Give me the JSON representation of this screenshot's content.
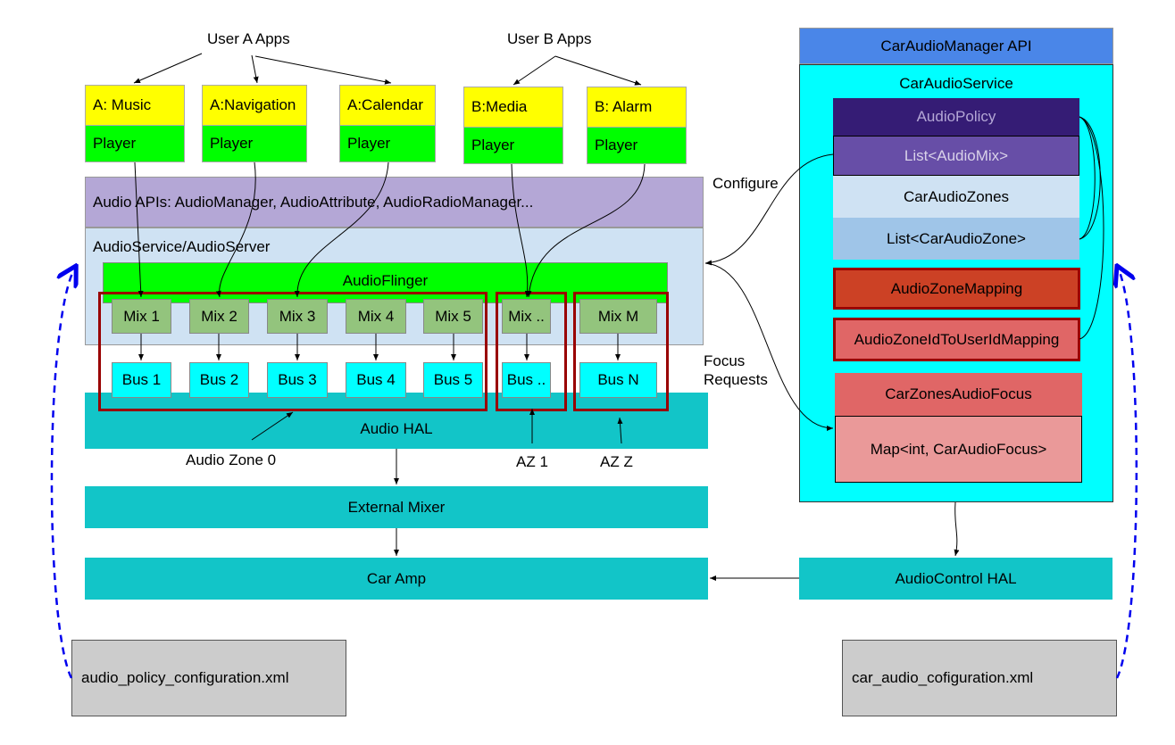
{
  "groups": {
    "user_a": "User A Apps",
    "user_b": "User B Apps"
  },
  "apps": [
    {
      "name": "A: Music",
      "player": "Player"
    },
    {
      "name": "A:Navigation",
      "player": "Player"
    },
    {
      "name": "A:Calendar",
      "player": "Player"
    },
    {
      "name": "B:Media",
      "player": "Player"
    },
    {
      "name": "B: Alarm",
      "player": "Player"
    }
  ],
  "audio_apis": "Audio APIs: AudioManager, AudioAttribute, AudioRadioManager...",
  "audio_service": "AudioService/AudioServer",
  "audio_flinger": "AudioFlinger",
  "mixes": [
    "Mix 1",
    "Mix 2",
    "Mix 3",
    "Mix 4",
    "Mix 5",
    "Mix ..",
    "Mix M"
  ],
  "buses": [
    "Bus 1",
    "Bus 2",
    "Bus 3",
    "Bus 4",
    "Bus 5",
    "Bus ..",
    "Bus N"
  ],
  "audio_hal": "Audio HAL",
  "zones": {
    "zone0": "Audio Zone 0",
    "az1": "AZ 1",
    "azz": "AZ Z"
  },
  "external_mixer": "External Mixer",
  "car_amp": "Car Amp",
  "audio_policy_xml": "audio_policy_configuration.xml",
  "car_audio_xml": "car_audio_cofiguration.xml",
  "labels": {
    "configure": "Configure",
    "focus_1": "Focus",
    "focus_2": "Requests"
  },
  "car": {
    "manager_api": "CarAudioManager API",
    "service": "CarAudioService",
    "audio_policy": "AudioPolicy",
    "audio_mix_list": "List<AudioMix>",
    "car_audio_zones": "CarAudioZones",
    "car_audio_zone_list": "List<CarAudioZone>",
    "zone_mapping": "AudioZoneMapping",
    "zone_user_mapping": "AudioZoneIdToUserIdMapping",
    "zones_focus": "CarZonesAudioFocus",
    "focus_map": "Map<int, CarAudioFocus>",
    "audio_control_hal": "AudioControl HAL"
  },
  "colors": {
    "zone_frame": "#990000",
    "config_arrow": "#0000ee"
  }
}
